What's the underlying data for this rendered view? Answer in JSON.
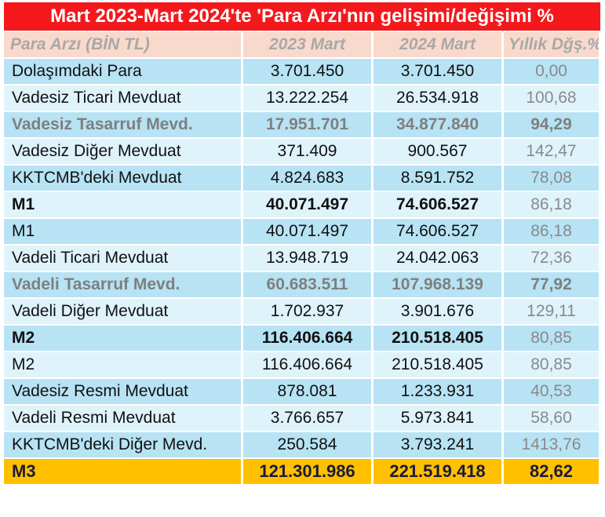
{
  "chart_data": {
    "type": "table",
    "title": "Mart 2023-Mart 2024'te 'Para Arzı'nın gelişimi/değişimi %",
    "columns": [
      "Para Arzı (BİN TL)",
      "2023 Mart",
      "2024 Mart",
      "Yıllık Dğş.%"
    ],
    "rows": [
      {
        "label": "Dolaşımdaki Para",
        "v2023": "3.701.450",
        "v2024": "3.701.450",
        "pct": "0,00",
        "style": "dark"
      },
      {
        "label": "Vadesiz Ticari Mevduat",
        "v2023": "13.222.254",
        "v2024": "26.534.918",
        "pct": "100,68",
        "style": "light"
      },
      {
        "label": "Vadesiz Tasarruf Mevd.",
        "v2023": "17.951.701",
        "v2024": "34.877.840",
        "pct": "94,29",
        "style": "dark grey"
      },
      {
        "label": "Vadesiz Diğer Mevduat",
        "v2023": "371.409",
        "v2024": "900.567",
        "pct": "142,47",
        "style": "light"
      },
      {
        "label": "KKTCMB'deki Mevduat",
        "v2023": "4.824.683",
        "v2024": "8.591.752",
        "pct": "78,08",
        "style": "dark"
      },
      {
        "label": "M1",
        "v2023": "40.071.497",
        "v2024": "74.606.527",
        "pct": "86,18",
        "style": "light bold"
      },
      {
        "label": "M1",
        "v2023": "40.071.497",
        "v2024": "74.606.527",
        "pct": "86,18",
        "style": "dark"
      },
      {
        "label": "Vadeli Ticari Mevduat",
        "v2023": "13.948.719",
        "v2024": "24.042.063",
        "pct": "72,36",
        "style": "light"
      },
      {
        "label": "Vadeli Tasarruf Mevd.",
        "v2023": "60.683.511",
        "v2024": "107.968.139",
        "pct": "77,92",
        "style": "dark grey"
      },
      {
        "label": "Vadeli Diğer Mevduat",
        "v2023": "1.702.937",
        "v2024": "3.901.676",
        "pct": "129,11",
        "style": "light"
      },
      {
        "label": "M2",
        "v2023": "116.406.664",
        "v2024": "210.518.405",
        "pct": "80,85",
        "style": "dark bold"
      },
      {
        "label": "M2",
        "v2023": "116.406.664",
        "v2024": "210.518.405",
        "pct": "80,85",
        "style": "light"
      },
      {
        "label": "Vadesiz Resmi Mevduat",
        "v2023": "878.081",
        "v2024": "1.233.931",
        "pct": "40,53",
        "style": "dark"
      },
      {
        "label": "Vadeli Resmi Mevduat",
        "v2023": "3.766.657",
        "v2024": "5.973.841",
        "pct": "58,60",
        "style": "light"
      },
      {
        "label": "KKTCMB'deki Diğer Mevd.",
        "v2023": "250.584",
        "v2024": "3.793.241",
        "pct": "1413,76",
        "style": "dark"
      },
      {
        "label": "M3",
        "v2023": "121.301.986",
        "v2024": "221.519.418",
        "pct": "82,62",
        "style": "m3"
      }
    ],
    "colors": {
      "title_bg": "#f4181d",
      "header_bg": "#f9d9cc",
      "row_dark": "#b7e3f4",
      "row_light": "#dff3fb",
      "total_bg": "#ffc000"
    }
  }
}
